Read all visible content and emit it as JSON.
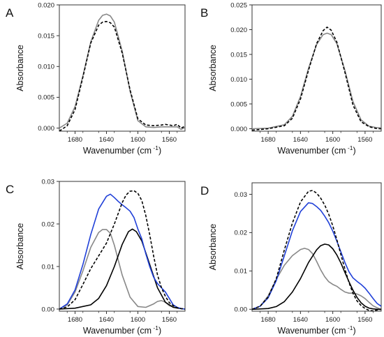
{
  "colors": {
    "gray": "#888888",
    "dashed": "#000000",
    "black": "#000000",
    "blue": "#2040d8"
  },
  "chart_data": [
    {
      "label": "A",
      "type": "line",
      "xlabel": "Wavenumber (cm",
      "xlabel_sup": "-1",
      "xlabel_close": ")",
      "ylabel": "Absorbance",
      "xlim": [
        1700,
        1540
      ],
      "ylim": [
        -0.0005,
        0.02
      ],
      "xticks": [
        "1680",
        "1640",
        "1600",
        "1560"
      ],
      "xtick_values": [
        1680,
        1640,
        1600,
        1560
      ],
      "yticks": [
        "0.000",
        "0.005",
        "0.010",
        "0.015",
        "0.020"
      ],
      "ytick_values": [
        0,
        0.005,
        0.01,
        0.015,
        0.02
      ],
      "series": [
        {
          "style": "gray",
          "x": [
            1700,
            1690,
            1680,
            1670,
            1660,
            1650,
            1645,
            1640,
            1635,
            1630,
            1620,
            1610,
            1600,
            1590,
            1580,
            1570,
            1560,
            1550,
            1545,
            1540
          ],
          "y": [
            0,
            0.0008,
            0.0035,
            0.0085,
            0.014,
            0.0175,
            0.0183,
            0.0185,
            0.0182,
            0.0172,
            0.0125,
            0.006,
            0.0012,
            0.0002,
            0.0001,
            0.0002,
            0.0002,
            0.0002,
            -0.0002,
            0.0001
          ]
        },
        {
          "style": "dashed",
          "x": [
            1700,
            1690,
            1680,
            1670,
            1660,
            1650,
            1645,
            1640,
            1635,
            1630,
            1620,
            1610,
            1600,
            1590,
            1580,
            1570,
            1565,
            1560,
            1555,
            1550,
            1545,
            1540
          ],
          "y": [
            -0.0005,
            0.0004,
            0.003,
            0.0083,
            0.0138,
            0.0167,
            0.0172,
            0.0173,
            0.0171,
            0.0164,
            0.0122,
            0.0062,
            0.0015,
            0.0005,
            0.0004,
            0.0005,
            0.0006,
            0.0005,
            0.0004,
            0.0006,
            0.0,
            0.0003
          ]
        }
      ]
    },
    {
      "label": "B",
      "type": "line",
      "xlabel": "Wavenumber (cm",
      "xlabel_sup": "-1",
      "xlabel_close": ")",
      "ylabel": "Absorbance",
      "xlim": [
        1700,
        1540
      ],
      "ylim": [
        -0.0005,
        0.025
      ],
      "xticks": [
        "1680",
        "1640",
        "1600",
        "1560"
      ],
      "xtick_values": [
        1680,
        1640,
        1600,
        1560
      ],
      "yticks": [
        "0.000",
        "0.005",
        "0.010",
        "0.015",
        "0.020",
        "0.025"
      ],
      "ytick_values": [
        0,
        0.005,
        0.01,
        0.015,
        0.02,
        0.025
      ],
      "series": [
        {
          "style": "gray",
          "x": [
            1700,
            1680,
            1660,
            1650,
            1640,
            1630,
            1620,
            1612,
            1607,
            1602,
            1595,
            1585,
            1575,
            1565,
            1555,
            1545,
            1540
          ],
          "y": [
            0,
            0.0001,
            0.0008,
            0.0025,
            0.0065,
            0.0122,
            0.017,
            0.019,
            0.0193,
            0.019,
            0.0172,
            0.0118,
            0.0055,
            0.0018,
            0.0005,
            0.0002,
            0.0002
          ]
        },
        {
          "style": "dashed",
          "x": [
            1700,
            1680,
            1660,
            1650,
            1640,
            1630,
            1620,
            1612,
            1607,
            1602,
            1595,
            1585,
            1575,
            1565,
            1555,
            1545,
            1540
          ],
          "y": [
            -0.0003,
            0.0,
            0.0006,
            0.0021,
            0.006,
            0.0118,
            0.0172,
            0.0198,
            0.0205,
            0.0199,
            0.0175,
            0.0114,
            0.0048,
            0.0014,
            0.0004,
            0.0,
            0.0
          ]
        }
      ]
    },
    {
      "label": "C",
      "type": "line",
      "xlabel": "Wavenumber (cm",
      "xlabel_sup": "-1",
      "xlabel_close": ")",
      "ylabel": "Absorbance",
      "xlim": [
        1700,
        1540
      ],
      "ylim": [
        -0.0005,
        0.03
      ],
      "xticks": [
        "1680",
        "1640",
        "1600",
        "1560"
      ],
      "xtick_values": [
        1680,
        1640,
        1600,
        1560
      ],
      "yticks": [
        "0.00",
        "0.01",
        "0.02",
        "0.03"
      ],
      "ytick_values": [
        0,
        0.01,
        0.02,
        0.03
      ],
      "series": [
        {
          "style": "gray",
          "x": [
            1700,
            1690,
            1680,
            1670,
            1660,
            1650,
            1645,
            1640,
            1635,
            1630,
            1620,
            1610,
            1600,
            1590,
            1580,
            1575,
            1570,
            1565,
            1560,
            1550,
            1540
          ],
          "y": [
            0,
            0.001,
            0.004,
            0.009,
            0.0145,
            0.018,
            0.0187,
            0.0187,
            0.0178,
            0.015,
            0.008,
            0.0028,
            0.0006,
            0.0004,
            0.0012,
            0.0018,
            0.002,
            0.0016,
            0.0008,
            0.0002,
            0.0
          ]
        },
        {
          "style": "black",
          "x": [
            1700,
            1680,
            1660,
            1650,
            1640,
            1630,
            1620,
            1612,
            1607,
            1602,
            1595,
            1585,
            1575,
            1565,
            1555,
            1545,
            1540
          ],
          "y": [
            0,
            0.0002,
            0.001,
            0.0025,
            0.0055,
            0.01,
            0.0152,
            0.0182,
            0.0188,
            0.0182,
            0.016,
            0.0105,
            0.005,
            0.0016,
            0.0004,
            0.0001,
            0.0
          ]
        },
        {
          "style": "blue",
          "x": [
            1700,
            1690,
            1680,
            1670,
            1660,
            1650,
            1640,
            1635,
            1630,
            1625,
            1620,
            1615,
            1610,
            1605,
            1600,
            1595,
            1590,
            1585,
            1580,
            1575,
            1570,
            1565,
            1560,
            1555,
            1550,
            1545,
            1540
          ],
          "y": [
            0,
            0.0012,
            0.0045,
            0.0105,
            0.0175,
            0.0235,
            0.0265,
            0.027,
            0.0262,
            0.0253,
            0.0245,
            0.0238,
            0.023,
            0.0215,
            0.0188,
            0.0165,
            0.013,
            0.01,
            0.0075,
            0.006,
            0.005,
            0.004,
            0.0025,
            0.001,
            0.0004,
            0.0001,
            0.0
          ]
        },
        {
          "style": "dashed",
          "x": [
            1700,
            1690,
            1680,
            1670,
            1660,
            1650,
            1640,
            1630,
            1620,
            1615,
            1610,
            1605,
            1600,
            1595,
            1590,
            1585,
            1580,
            1575,
            1570,
            1565,
            1560,
            1555,
            1550,
            1545,
            1540
          ],
          "y": [
            0,
            0.0005,
            0.0022,
            0.0058,
            0.0095,
            0.0125,
            0.0155,
            0.02,
            0.025,
            0.0268,
            0.0277,
            0.0278,
            0.0272,
            0.0255,
            0.022,
            0.0175,
            0.0125,
            0.008,
            0.005,
            0.003,
            0.0015,
            0.0008,
            0.0003,
            0.0001,
            0.0
          ]
        }
      ]
    },
    {
      "label": "D",
      "type": "line",
      "xlabel": "Wavenumber (cm",
      "xlabel_sup": "-1",
      "xlabel_close": ")",
      "ylabel": "Absorbance",
      "xlim": [
        1700,
        1540
      ],
      "ylim": [
        -0.0005,
        0.033
      ],
      "xticks": [
        "1680",
        "1640",
        "1600",
        "1560"
      ],
      "xtick_values": [
        1680,
        1640,
        1600,
        1560
      ],
      "yticks": [
        "0.00",
        "0.01",
        "0.02",
        "0.03"
      ],
      "ytick_values": [
        0,
        0.01,
        0.02,
        0.03
      ],
      "series": [
        {
          "style": "gray",
          "x": [
            1700,
            1690,
            1680,
            1670,
            1660,
            1650,
            1640,
            1635,
            1630,
            1625,
            1620,
            1615,
            1610,
            1605,
            1600,
            1595,
            1590,
            1585,
            1580,
            1575,
            1570,
            1565,
            1560,
            1555,
            1550,
            1545,
            1540
          ],
          "y": [
            0,
            0.0008,
            0.0035,
            0.0078,
            0.0115,
            0.014,
            0.0156,
            0.0159,
            0.0156,
            0.0145,
            0.0125,
            0.0103,
            0.0085,
            0.0072,
            0.0065,
            0.006,
            0.0052,
            0.0045,
            0.0042,
            0.0042,
            0.004,
            0.0035,
            0.0028,
            0.0018,
            0.0009,
            0.0004,
            0.0
          ]
        },
        {
          "style": "black",
          "x": [
            1700,
            1680,
            1670,
            1660,
            1650,
            1640,
            1630,
            1620,
            1615,
            1610,
            1605,
            1600,
            1595,
            1590,
            1585,
            1580,
            1575,
            1570,
            1565,
            1560,
            1555,
            1550,
            1545,
            1540
          ],
          "y": [
            0,
            0.0002,
            0.0007,
            0.002,
            0.0045,
            0.008,
            0.0122,
            0.0155,
            0.0166,
            0.017,
            0.0168,
            0.0158,
            0.0142,
            0.0121,
            0.0096,
            0.0072,
            0.005,
            0.0031,
            0.0017,
            0.0008,
            0.0003,
            0.0001,
            0.0,
            0.0
          ]
        },
        {
          "style": "blue",
          "x": [
            1700,
            1690,
            1680,
            1670,
            1660,
            1650,
            1640,
            1630,
            1625,
            1620,
            1615,
            1610,
            1605,
            1600,
            1595,
            1590,
            1585,
            1580,
            1575,
            1570,
            1565,
            1560,
            1555,
            1550,
            1545,
            1540
          ],
          "y": [
            0,
            0.0008,
            0.003,
            0.0075,
            0.014,
            0.0205,
            0.0255,
            0.0278,
            0.0276,
            0.0268,
            0.0258,
            0.0243,
            0.0226,
            0.0204,
            0.0178,
            0.015,
            0.0122,
            0.0098,
            0.0082,
            0.0073,
            0.0065,
            0.0055,
            0.0042,
            0.0028,
            0.0015,
            0.0008
          ]
        },
        {
          "style": "dashed",
          "x": [
            1700,
            1690,
            1680,
            1670,
            1660,
            1650,
            1640,
            1630,
            1625,
            1620,
            1615,
            1610,
            1605,
            1600,
            1595,
            1590,
            1585,
            1580,
            1575,
            1570,
            1565,
            1560,
            1555,
            1550,
            1545,
            1540
          ],
          "y": [
            0,
            0.0008,
            0.0032,
            0.008,
            0.0155,
            0.0225,
            0.028,
            0.0308,
            0.031,
            0.0303,
            0.029,
            0.0272,
            0.0248,
            0.0218,
            0.0182,
            0.0143,
            0.0105,
            0.007,
            0.0042,
            0.0022,
            0.001,
            0.0002,
            -0.0003,
            -0.0004,
            -0.0002,
            0.0
          ]
        }
      ]
    }
  ]
}
